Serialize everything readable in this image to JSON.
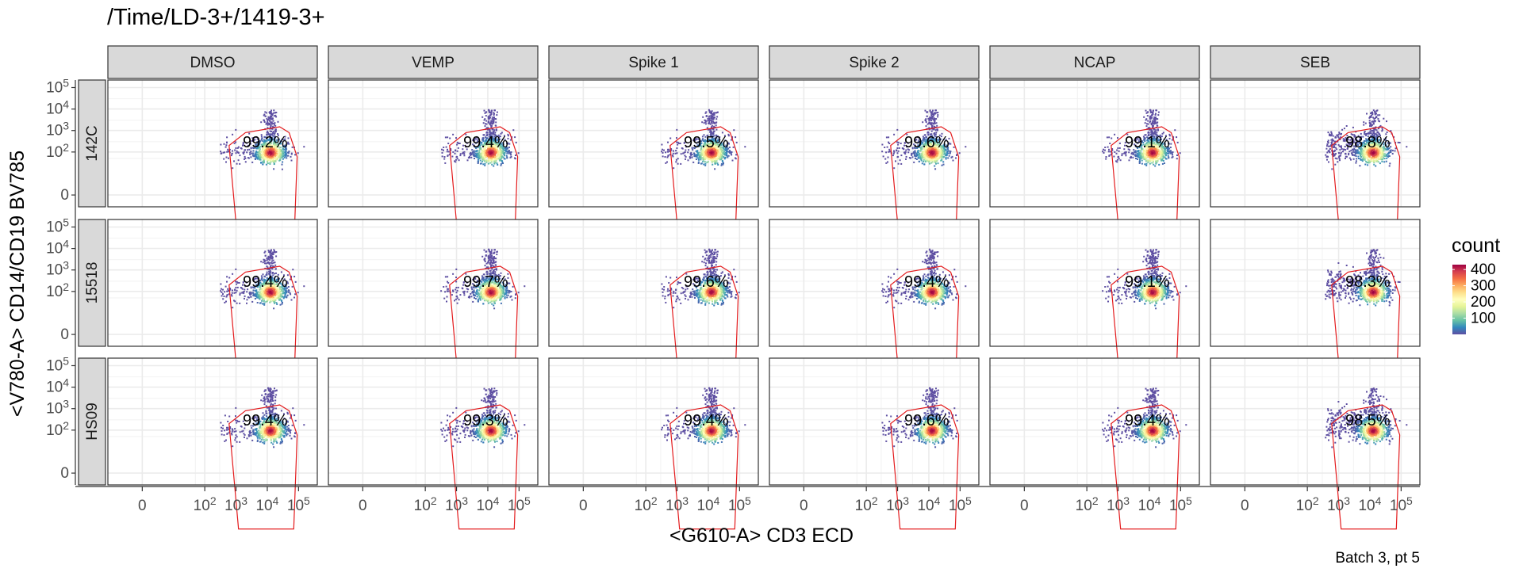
{
  "title": "/Time/LD-3+/1419-3+",
  "caption": "Batch 3, pt 5",
  "chart_data": {
    "type": "heatmap",
    "subtype": "faceted 2D density (flow cytometry) with gate polygon",
    "xlabel": "<G610-A> CD3 ECD",
    "ylabel": "<V780-A> CD14/CD19 BV785",
    "x_scale": "biexponential",
    "y_scale": "biexponential",
    "x_ticks": [
      "0",
      "10^2",
      "10^3",
      "10^4",
      "10^5"
    ],
    "y_ticks": [
      "0",
      "10^2",
      "10^3",
      "10^4",
      "10^5"
    ],
    "x_tick_values": [
      0,
      100,
      1000,
      10000,
      100000
    ],
    "y_tick_values": [
      0,
      100,
      1000,
      10000,
      100000
    ],
    "columns": [
      "DMSO",
      "VEMP",
      "Spike 1",
      "Spike 2",
      "NCAP",
      "SEB"
    ],
    "rows": [
      "142C",
      "15518",
      "HS09"
    ],
    "gate_percent": [
      [
        "99.2%",
        "99.4%",
        "99.5%",
        "99.6%",
        "99.1%",
        "98.8%"
      ],
      [
        "99.4%",
        "99.7%",
        "99.6%",
        "99.4%",
        "99.1%",
        "98.3%"
      ],
      [
        "99.4%",
        "99.3%",
        "99.4%",
        "99.6%",
        "99.4%",
        "98.5%"
      ]
    ],
    "population_center": {
      "x": 12000,
      "y": 100
    },
    "gate_color": "#e31a1c",
    "grid": true,
    "legend": {
      "title": "count",
      "ticks": [
        "100",
        "200",
        "300",
        "400"
      ],
      "tick_values": [
        100,
        200,
        300,
        400
      ],
      "range": [
        0,
        430
      ],
      "colormap": "Spectral (reversed)",
      "colors": [
        "#5e4fa2",
        "#3288bd",
        "#66c2a5",
        "#abdda4",
        "#e6f598",
        "#ffffbf",
        "#fee08b",
        "#fdae61",
        "#f46d43",
        "#d53e4f",
        "#9e0142"
      ],
      "placement": "right"
    }
  }
}
